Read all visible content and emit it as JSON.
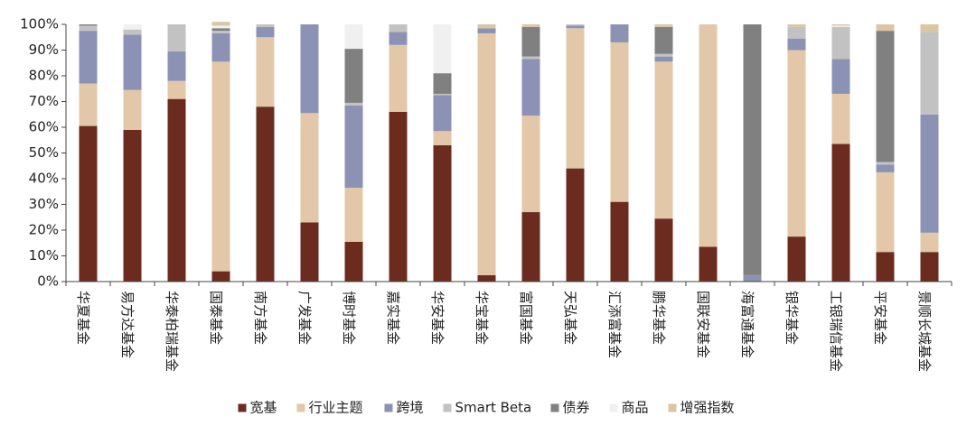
{
  "chart_data": {
    "type": "bar",
    "stacked": true,
    "percent": true,
    "ylim": [
      0,
      100
    ],
    "yticks": [
      "0%",
      "10%",
      "20%",
      "30%",
      "40%",
      "50%",
      "60%",
      "70%",
      "80%",
      "90%",
      "100%"
    ],
    "grid": false,
    "legend_position": "bottom",
    "categories": [
      "华夏基金",
      "易方达基金",
      "华泰柏瑞基金",
      "国泰基金",
      "南方基金",
      "广发基金",
      "博时基金",
      "嘉实基金",
      "华安基金",
      "华宝基金",
      "富国基金",
      "天弘基金",
      "汇添富基金",
      "鹏华基金",
      "国联安基金",
      "海富通基金",
      "银华基金",
      "工银瑞信基金",
      "平安基金",
      "景顺长城基金"
    ],
    "series": [
      {
        "name": "宽基",
        "color": "#6B2C1F",
        "values": [
          60.5,
          59,
          71,
          4,
          68,
          23,
          15.5,
          66,
          53,
          2.5,
          27,
          44,
          31,
          24.5,
          13.5,
          0,
          17.5,
          53.5,
          11.5,
          11.5
        ]
      },
      {
        "name": "行业主题",
        "color": "#E2C8A8",
        "values": [
          16.5,
          15.5,
          7,
          81.5,
          27,
          42.5,
          21,
          26,
          5.5,
          94,
          37.5,
          54.5,
          62,
          61,
          86.5,
          0,
          72.5,
          19.5,
          31,
          7.5
        ]
      },
      {
        "name": "跨境",
        "color": "#8C92B4",
        "values": [
          20.5,
          21.5,
          11.5,
          11,
          4,
          34.5,
          32,
          5,
          14,
          2,
          22,
          1,
          7,
          2,
          0,
          2.5,
          4.5,
          13.5,
          3,
          46
        ]
      },
      {
        "name": "Smart Beta",
        "color": "#C2C2C2",
        "values": [
          2,
          2,
          10.5,
          1,
          1,
          0,
          1,
          3,
          0.5,
          0,
          1,
          0.5,
          0,
          1,
          0,
          0,
          4.5,
          12.5,
          1,
          32
        ]
      },
      {
        "name": "债券",
        "color": "#808080",
        "values": [
          0.5,
          0,
          0,
          1,
          0,
          0,
          21,
          0,
          8,
          0,
          11.5,
          0,
          0,
          10.5,
          0,
          97.5,
          0,
          0,
          51,
          0
        ]
      },
      {
        "name": "商品",
        "color": "#F0F0F0",
        "values": [
          0,
          2,
          0,
          1,
          0,
          0,
          9.5,
          0,
          19,
          0,
          0,
          0,
          0,
          0,
          0,
          0,
          0,
          0.5,
          0,
          0
        ]
      },
      {
        "name": "增强指数",
        "color": "#DCC5A3",
        "values": [
          0,
          0,
          0,
          1.5,
          0,
          0,
          0,
          0,
          0,
          1.5,
          1,
          0,
          0,
          1,
          0,
          0,
          1,
          0.5,
          2.5,
          3
        ]
      }
    ]
  }
}
